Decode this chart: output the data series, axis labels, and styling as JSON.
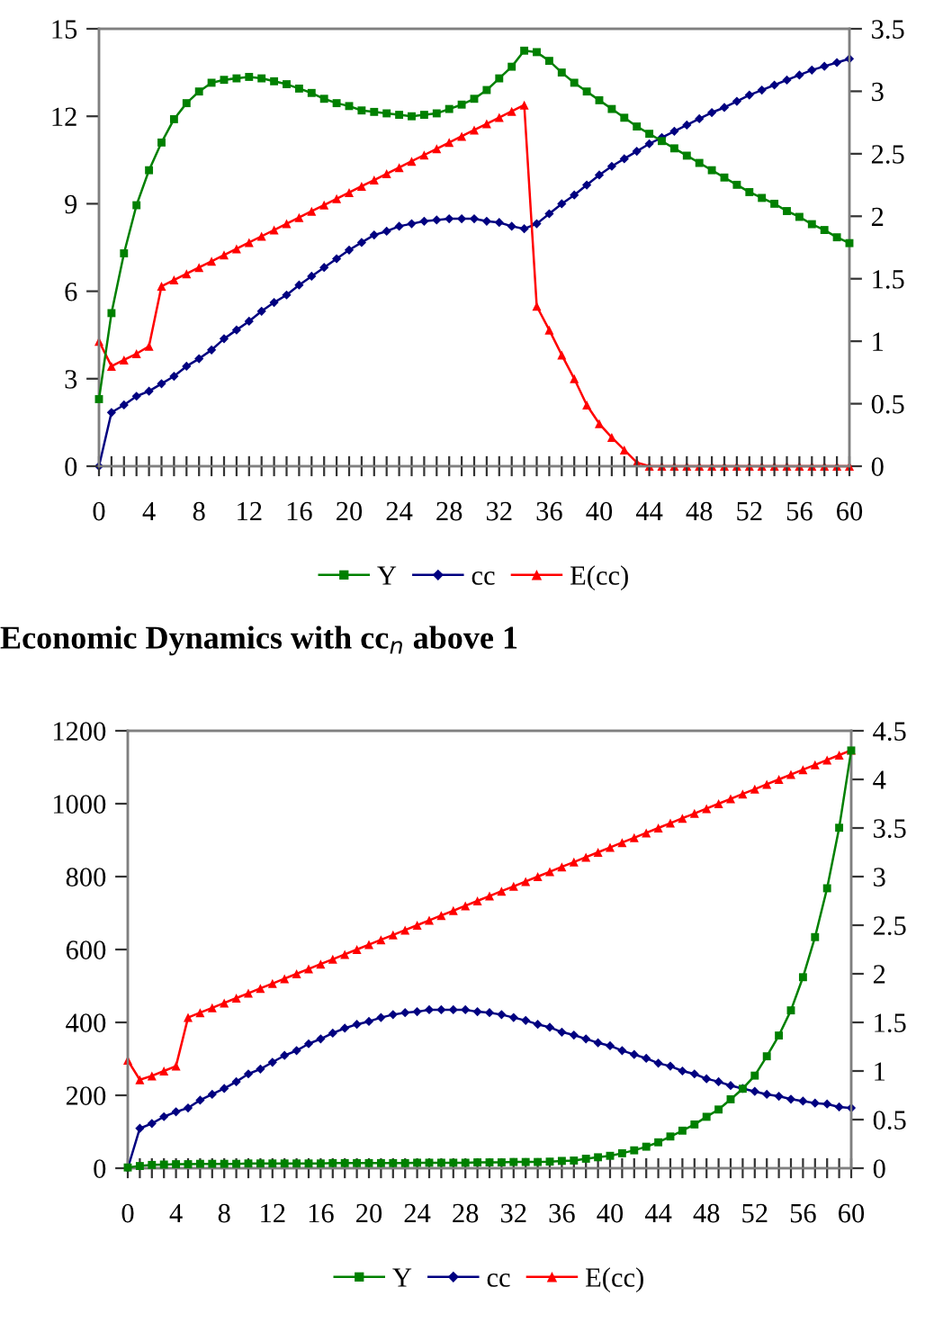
{
  "chart_data": [
    {
      "type": "line",
      "legend": "bottom",
      "grid": false,
      "x": [
        0,
        1,
        2,
        3,
        4,
        5,
        6,
        7,
        8,
        9,
        10,
        11,
        12,
        13,
        14,
        15,
        16,
        17,
        18,
        19,
        20,
        21,
        22,
        23,
        24,
        25,
        26,
        27,
        28,
        29,
        30,
        31,
        32,
        33,
        34,
        35,
        36,
        37,
        38,
        39,
        40,
        41,
        42,
        43,
        44,
        45,
        46,
        47,
        48,
        49,
        50,
        51,
        52,
        53,
        54,
        55,
        56,
        57,
        58,
        59,
        60
      ],
      "xlim": [
        0,
        60
      ],
      "xticks": [
        0,
        {
          "value": 1,
          "label": null
        },
        {
          "value": 2,
          "label": null
        },
        {
          "value": 3,
          "label": null
        },
        4,
        {
          "value": 5,
          "label": null
        },
        {
          "value": 6,
          "label": null
        },
        {
          "value": 7,
          "label": null
        },
        8,
        {
          "value": 9,
          "label": null
        },
        {
          "value": 10,
          "label": null
        },
        {
          "value": 11,
          "label": null
        },
        12,
        {
          "value": 13,
          "label": null
        },
        {
          "value": 14,
          "label": null
        },
        {
          "value": 15,
          "label": null
        },
        16,
        {
          "value": 17,
          "label": null
        },
        {
          "value": 18,
          "label": null
        },
        {
          "value": 19,
          "label": null
        },
        20,
        {
          "value": 21,
          "label": null
        },
        {
          "value": 22,
          "label": null
        },
        {
          "value": 23,
          "label": null
        },
        24,
        {
          "value": 25,
          "label": null
        },
        {
          "value": 26,
          "label": null
        },
        {
          "value": 27,
          "label": null
        },
        28,
        {
          "value": 29,
          "label": null
        },
        {
          "value": 30,
          "label": null
        },
        {
          "value": 31,
          "label": null
        },
        32,
        {
          "value": 33,
          "label": null
        },
        {
          "value": 34,
          "label": null
        },
        {
          "value": 35,
          "label": null
        },
        36,
        {
          "value": 37,
          "label": null
        },
        {
          "value": 38,
          "label": null
        },
        {
          "value": 39,
          "label": null
        },
        40,
        {
          "value": 41,
          "label": null
        },
        {
          "value": 42,
          "label": null
        },
        {
          "value": 43,
          "label": null
        },
        44,
        {
          "value": 45,
          "label": null
        },
        {
          "value": 46,
          "label": null
        },
        {
          "value": 47,
          "label": null
        },
        48,
        {
          "value": 49,
          "label": null
        },
        {
          "value": 50,
          "label": null
        },
        {
          "value": 51,
          "label": null
        },
        52,
        {
          "value": 53,
          "label": null
        },
        {
          "value": 54,
          "label": null
        },
        {
          "value": 55,
          "label": null
        },
        56,
        {
          "value": 57,
          "label": null
        },
        {
          "value": 58,
          "label": null
        },
        {
          "value": 59,
          "label": null
        },
        60
      ],
      "ylim": [
        0,
        15
      ],
      "yticks": [
        0,
        3,
        6,
        9,
        12,
        15
      ],
      "y2lim": [
        0,
        3.5
      ],
      "y2ticks": [
        0,
        0.5,
        1,
        1.5,
        2,
        2.5,
        3,
        3.5
      ],
      "series": [
        {
          "name": "Y",
          "color": "#008000",
          "marker": "square",
          "values": [
            2.3,
            5.25,
            7.3,
            8.95,
            10.15,
            11.1,
            11.9,
            12.45,
            12.85,
            13.15,
            13.25,
            13.3,
            13.35,
            13.3,
            13.2,
            13.1,
            12.95,
            12.8,
            12.6,
            12.45,
            12.35,
            12.2,
            12.15,
            12.1,
            12.05,
            12.0,
            12.05,
            12.1,
            12.25,
            12.4,
            12.6,
            12.9,
            13.3,
            13.7,
            14.25,
            14.2,
            13.9,
            13.5,
            13.15,
            12.85,
            12.55,
            12.25,
            11.95,
            11.65,
            11.4,
            11.15,
            10.9,
            10.65,
            10.4,
            10.15,
            9.9,
            9.65,
            9.4,
            9.2,
            9.0,
            8.75,
            8.55,
            8.3,
            8.1,
            7.85,
            7.65
          ]
        },
        {
          "name": "cc",
          "color": "#000080",
          "marker": "diamond",
          "axis": "y2",
          "values": [
            0,
            0.43,
            0.49,
            0.56,
            0.6,
            0.66,
            0.72,
            0.8,
            0.86,
            0.93,
            1.02,
            1.09,
            1.16,
            1.24,
            1.31,
            1.37,
            1.45,
            1.52,
            1.59,
            1.66,
            1.73,
            1.79,
            1.85,
            1.88,
            1.92,
            1.94,
            1.96,
            1.97,
            1.98,
            1.98,
            1.98,
            1.96,
            1.95,
            1.92,
            1.9,
            1.94,
            2.02,
            2.1,
            2.17,
            2.25,
            2.33,
            2.4,
            2.46,
            2.52,
            2.58,
            2.63,
            2.68,
            2.73,
            2.78,
            2.83,
            2.87,
            2.92,
            2.97,
            3.01,
            3.05,
            3.09,
            3.13,
            3.17,
            3.2,
            3.23,
            3.26
          ]
        },
        {
          "name": "E(cc)",
          "color": "#ff0000",
          "marker": "triangle",
          "axis": "y2",
          "values": [
            1.0,
            0.8,
            0.85,
            0.9,
            0.96,
            1.44,
            1.49,
            1.54,
            1.59,
            1.64,
            1.69,
            1.74,
            1.79,
            1.84,
            1.89,
            1.94,
            1.99,
            2.04,
            2.09,
            2.14,
            2.19,
            2.24,
            2.29,
            2.34,
            2.39,
            2.44,
            2.49,
            2.54,
            2.59,
            2.64,
            2.69,
            2.74,
            2.79,
            2.84,
            2.89,
            1.28,
            1.09,
            0.89,
            0.7,
            0.49,
            0.34,
            0.23,
            0.13,
            0.03,
            0,
            0,
            0,
            0,
            0,
            0,
            0,
            0,
            0,
            0,
            0,
            0,
            0,
            0,
            0,
            0,
            0
          ]
        }
      ]
    },
    {
      "type": "line",
      "legend": "bottom",
      "grid": false,
      "title": "Economic Dynamics with cc$_{n}$ above 1",
      "x": [
        0,
        1,
        2,
        3,
        4,
        5,
        6,
        7,
        8,
        9,
        10,
        11,
        12,
        13,
        14,
        15,
        16,
        17,
        18,
        19,
        20,
        21,
        22,
        23,
        24,
        25,
        26,
        27,
        28,
        29,
        30,
        31,
        32,
        33,
        34,
        35,
        36,
        37,
        38,
        39,
        40,
        41,
        42,
        43,
        44,
        45,
        46,
        47,
        48,
        49,
        50,
        51,
        52,
        53,
        54,
        55,
        56,
        57,
        58,
        59,
        60
      ],
      "xlim": [
        0,
        60
      ],
      "xticks": [
        0,
        {
          "value": 1,
          "label": null
        },
        {
          "value": 2,
          "label": null
        },
        {
          "value": 3,
          "label": null
        },
        4,
        {
          "value": 5,
          "label": null
        },
        {
          "value": 6,
          "label": null
        },
        {
          "value": 7,
          "label": null
        },
        8,
        {
          "value": 9,
          "label": null
        },
        {
          "value": 10,
          "label": null
        },
        {
          "value": 11,
          "label": null
        },
        12,
        {
          "value": 13,
          "label": null
        },
        {
          "value": 14,
          "label": null
        },
        {
          "value": 15,
          "label": null
        },
        16,
        {
          "value": 17,
          "label": null
        },
        {
          "value": 18,
          "label": null
        },
        {
          "value": 19,
          "label": null
        },
        20,
        {
          "value": 21,
          "label": null
        },
        {
          "value": 22,
          "label": null
        },
        {
          "value": 23,
          "label": null
        },
        24,
        {
          "value": 25,
          "label": null
        },
        {
          "value": 26,
          "label": null
        },
        {
          "value": 27,
          "label": null
        },
        28,
        {
          "value": 29,
          "label": null
        },
        {
          "value": 30,
          "label": null
        },
        {
          "value": 31,
          "label": null
        },
        32,
        {
          "value": 33,
          "label": null
        },
        {
          "value": 34,
          "label": null
        },
        {
          "value": 35,
          "label": null
        },
        36,
        {
          "value": 37,
          "label": null
        },
        {
          "value": 38,
          "label": null
        },
        {
          "value": 39,
          "label": null
        },
        40,
        {
          "value": 41,
          "label": null
        },
        {
          "value": 42,
          "label": null
        },
        {
          "value": 43,
          "label": null
        },
        44,
        {
          "value": 45,
          "label": null
        },
        {
          "value": 46,
          "label": null
        },
        {
          "value": 47,
          "label": null
        },
        48,
        {
          "value": 49,
          "label": null
        },
        {
          "value": 50,
          "label": null
        },
        {
          "value": 51,
          "label": null
        },
        52,
        {
          "value": 53,
          "label": null
        },
        {
          "value": 54,
          "label": null
        },
        {
          "value": 55,
          "label": null
        },
        56,
        {
          "value": 57,
          "label": null
        },
        {
          "value": 58,
          "label": null
        },
        {
          "value": 59,
          "label": null
        },
        60
      ],
      "ylim": [
        0,
        1200
      ],
      "yticks": [
        0,
        200,
        400,
        600,
        800,
        1000,
        1200
      ],
      "y2lim": [
        0,
        4.5
      ],
      "y2ticks": [
        0,
        0.5,
        1,
        1.5,
        2,
        2.5,
        3,
        3.5,
        4,
        4.5
      ],
      "series": [
        {
          "name": "Y",
          "color": "#008000",
          "marker": "square",
          "values": [
            2,
            6,
            9,
            10,
            11,
            11,
            12,
            12,
            12,
            12,
            13,
            13,
            13,
            13,
            13,
            13,
            13,
            14,
            14,
            14,
            14,
            14,
            14,
            14,
            15,
            15,
            15,
            15,
            15,
            16,
            16,
            16,
            17,
            17,
            17,
            18,
            20,
            21,
            26,
            30,
            34,
            41,
            49,
            59,
            71,
            87,
            103,
            120,
            141,
            161,
            189,
            218,
            254,
            307,
            364,
            433,
            524,
            634,
            768,
            934,
            1146
          ]
        },
        {
          "name": "cc",
          "color": "#000080",
          "marker": "diamond",
          "axis": "y2",
          "values": [
            0,
            0.41,
            0.46,
            0.53,
            0.58,
            0.62,
            0.7,
            0.76,
            0.82,
            0.89,
            0.97,
            1.02,
            1.09,
            1.16,
            1.21,
            1.28,
            1.33,
            1.39,
            1.44,
            1.48,
            1.51,
            1.55,
            1.58,
            1.6,
            1.61,
            1.63,
            1.63,
            1.63,
            1.63,
            1.61,
            1.6,
            1.58,
            1.55,
            1.52,
            1.48,
            1.45,
            1.4,
            1.37,
            1.33,
            1.29,
            1.26,
            1.21,
            1.17,
            1.13,
            1.08,
            1.05,
            1.0,
            0.97,
            0.92,
            0.89,
            0.85,
            0.82,
            0.79,
            0.76,
            0.74,
            0.71,
            0.69,
            0.67,
            0.66,
            0.63,
            0.62
          ]
        },
        {
          "name": "E(cc)",
          "color": "#ff0000",
          "marker": "triangle",
          "axis": "y2",
          "values": [
            1.11,
            0.91,
            0.95,
            1.0,
            1.05,
            1.55,
            1.6,
            1.65,
            1.7,
            1.75,
            1.8,
            1.85,
            1.9,
            1.95,
            2.0,
            2.05,
            2.1,
            2.15,
            2.2,
            2.25,
            2.3,
            2.35,
            2.4,
            2.45,
            2.5,
            2.55,
            2.6,
            2.65,
            2.7,
            2.75,
            2.8,
            2.85,
            2.9,
            2.95,
            3.0,
            3.05,
            3.1,
            3.15,
            3.2,
            3.25,
            3.3,
            3.35,
            3.4,
            3.45,
            3.5,
            3.55,
            3.6,
            3.65,
            3.7,
            3.75,
            3.8,
            3.85,
            3.9,
            3.95,
            4.0,
            4.05,
            4.1,
            4.15,
            4.2,
            4.25,
            4.3
          ]
        }
      ]
    }
  ]
}
